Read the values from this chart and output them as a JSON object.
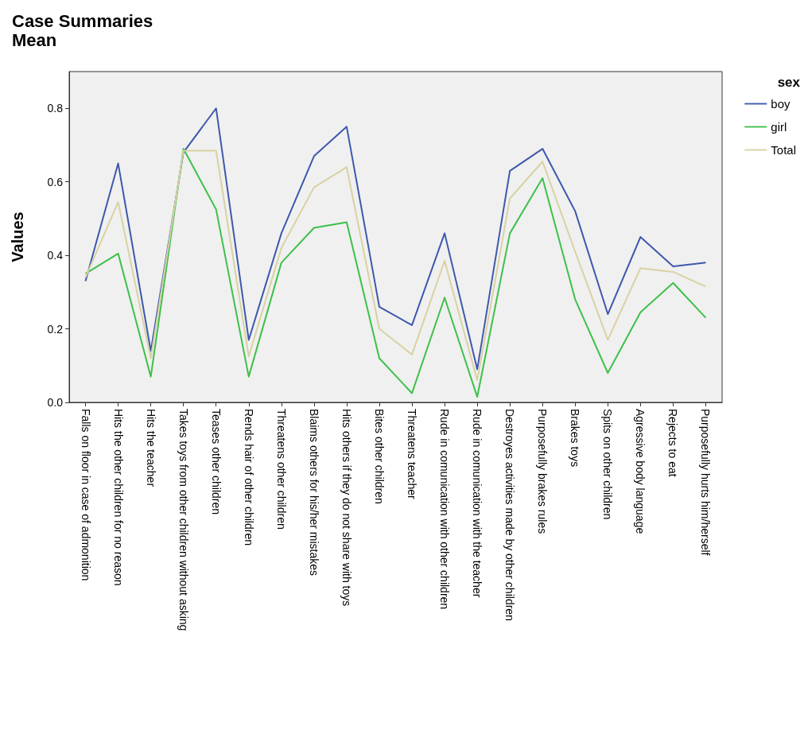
{
  "chart_data": {
    "type": "line",
    "title": "Case Summaries",
    "subtitle": "Mean",
    "ylabel": "Values",
    "legend_title": "sex",
    "legend": "top right",
    "grid": false,
    "marker": "none",
    "line_style": "solid",
    "categories": [
      "Falls on floor in case of admonition",
      "Hits the other children for no reason",
      "Hits the teacher",
      "Takes toys from other children without asking",
      "Teases other children",
      "Rends hair of other children",
      "Threatens other children",
      "Blaims others for his/her mistakes",
      "Hits others if they do not share with toys",
      "Bites other children",
      "Threatens teacher",
      "Rude in comunication with other children",
      "Rude in comunication with the teacher",
      "Destroyes activities made by other children",
      "Purposefully brakes rules",
      "Brakes toys",
      "Spits on other children",
      "Agressive body language",
      "Rejects to eat",
      "Purposefully hurts him/herself"
    ],
    "ylim": [
      0,
      0.9
    ],
    "yticks": [
      {
        "value": 0,
        "label": "0.0"
      },
      0.2,
      0.4,
      0.6,
      0.8
    ],
    "series": [
      {
        "name": "boy",
        "color": "#3e58ac",
        "values": [
          0.33,
          0.65,
          0.14,
          0.68,
          0.8,
          0.17,
          0.46,
          0.67,
          0.75,
          0.26,
          0.21,
          0.46,
          0.09,
          0.63,
          0.69,
          0.52,
          0.24,
          0.45,
          0.37,
          0.38
        ]
      },
      {
        "name": "girl",
        "color": "#3ec04a",
        "values": [
          0.35,
          0.405,
          0.07,
          0.69,
          0.525,
          0.07,
          0.38,
          0.475,
          0.49,
          0.12,
          0.025,
          0.285,
          0.015,
          0.46,
          0.61,
          0.28,
          0.08,
          0.245,
          0.325,
          0.23
        ]
      },
      {
        "name": "Total",
        "color": "#d8d2a2",
        "values": [
          0.34,
          0.545,
          0.12,
          0.685,
          0.685,
          0.125,
          0.42,
          0.585,
          0.64,
          0.2,
          0.13,
          0.385,
          0.06,
          0.555,
          0.655,
          0.41,
          0.17,
          0.365,
          0.355,
          0.315
        ]
      }
    ]
  }
}
